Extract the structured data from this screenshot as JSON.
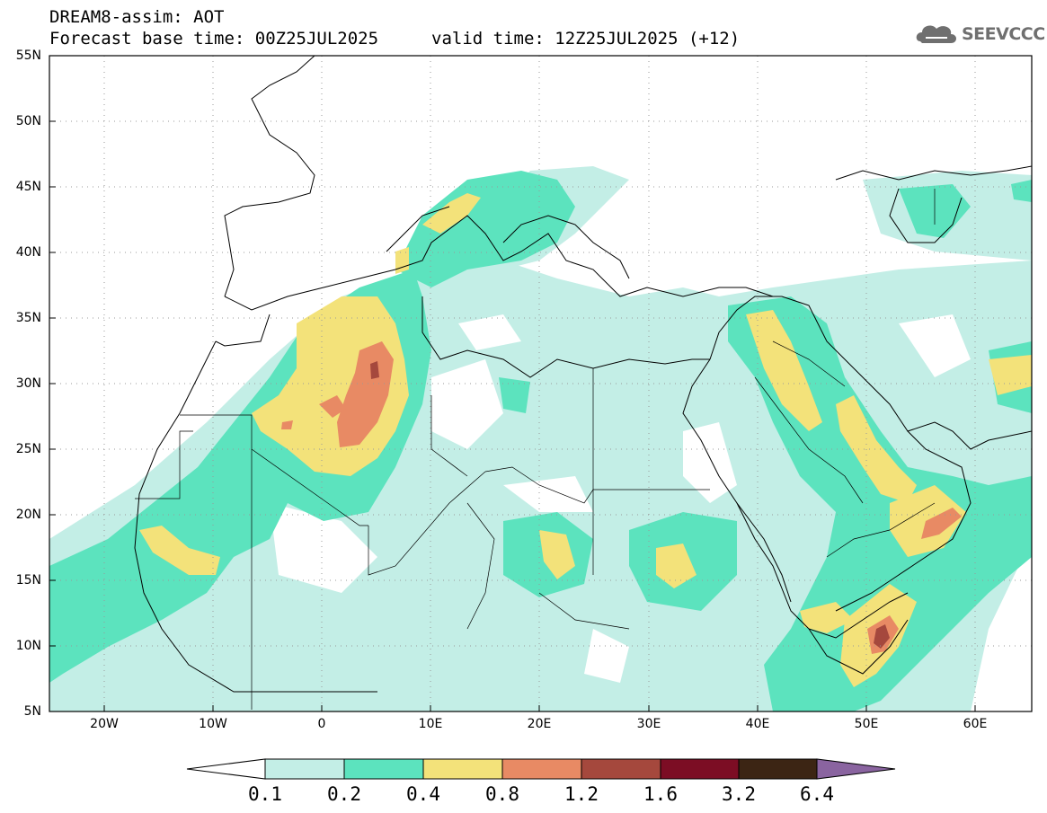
{
  "header": {
    "title_line1": "DREAM8-assim: AOT",
    "title_line2": "Forecast base time: 00Z25JUL2025",
    "valid_time": "valid time: 12Z25JUL2025 (+12)",
    "logo_text": "SEEVCCC"
  },
  "map": {
    "variable": "AOT",
    "lon_range": [
      -25,
      65
    ],
    "lat_range": [
      5,
      55
    ],
    "lat_ticks": [
      "55N",
      "50N",
      "45N",
      "40N",
      "35N",
      "30N",
      "25N",
      "20N",
      "15N",
      "10N",
      "5N"
    ],
    "lon_ticks": [
      "20W",
      "10W",
      "0",
      "10E",
      "20E",
      "30E",
      "40E",
      "50E",
      "60E"
    ],
    "dust_regions": [
      {
        "name": "western-sahara-core",
        "level": "0.8-1.2",
        "lon": 4,
        "lat": 28
      },
      {
        "name": "oman-coast",
        "level": "0.8-1.2",
        "lon": 57,
        "lat": 20
      },
      {
        "name": "gulf-of-aden-horn",
        "level": "1.2-1.6",
        "lon": 51,
        "lat": 10
      },
      {
        "name": "arabian-peninsula-band",
        "level": "0.4-0.8",
        "lon": 46,
        "lat": 28
      },
      {
        "name": "mauritania-coast",
        "level": "0.4-0.8",
        "lon": -13,
        "lat": 16
      },
      {
        "name": "chad-plume",
        "level": "0.4-0.8",
        "lon": 22,
        "lat": 17
      }
    ]
  },
  "colorbar": {
    "labels": [
      "0.1",
      "0.2",
      "0.4",
      "0.8",
      "1.2",
      "1.6",
      "3.2",
      "6.4"
    ],
    "colors": [
      "#c3eee6",
      "#5ce3be",
      "#f3e27a",
      "#e88a64",
      "#a5483d",
      "#7c0d24",
      "#3c2514",
      "#8a64a0"
    ],
    "under_color": "#ffffff"
  }
}
